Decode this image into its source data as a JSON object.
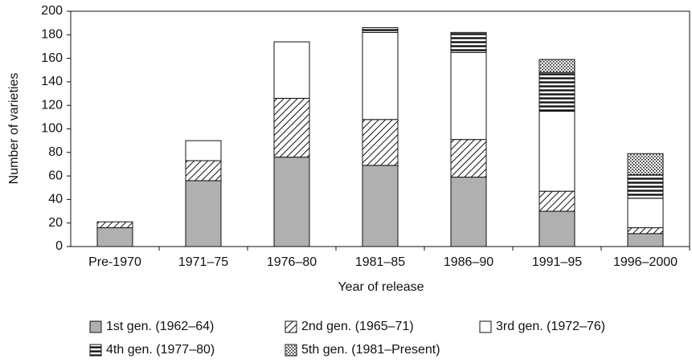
{
  "chart_data": {
    "type": "bar",
    "stacked": true,
    "x_label": "Year of release",
    "y_label": "Number of varieties",
    "categories": [
      "Pre-1970",
      "1971–75",
      "1976–80",
      "1981–85",
      "1986–90",
      "1991–95",
      "1996–2000"
    ],
    "series": [
      {
        "name": "1st gen. (1962–64)",
        "color": "#b0b0b0",
        "pattern": "solid",
        "values": [
          16,
          56,
          76,
          69,
          59,
          30,
          11
        ]
      },
      {
        "name": "2nd gen. (1965–71)",
        "color": "#ffffff",
        "pattern": "diagonal",
        "values": [
          5,
          17,
          50,
          39,
          32,
          17,
          5
        ]
      },
      {
        "name": "3rd gen. (1972–76)",
        "color": "#ffffff",
        "pattern": "solid",
        "values": [
          null,
          17,
          48,
          74,
          74,
          68,
          25
        ]
      },
      {
        "name": "4th gen. (1977–80)",
        "color": "#ffffff",
        "pattern": "horizontal",
        "values": [
          null,
          null,
          null,
          4,
          17,
          33,
          20
        ]
      },
      {
        "name": "5th gen. (1981–Present)",
        "color": "#ffffff",
        "pattern": "dots",
        "values": [
          null,
          null,
          null,
          null,
          null,
          11,
          18
        ]
      }
    ],
    "ylim": [
      0,
      200
    ],
    "yticks": [
      0,
      20,
      40,
      60,
      80,
      100,
      120,
      140,
      160,
      180,
      200
    ],
    "grid": false
  }
}
